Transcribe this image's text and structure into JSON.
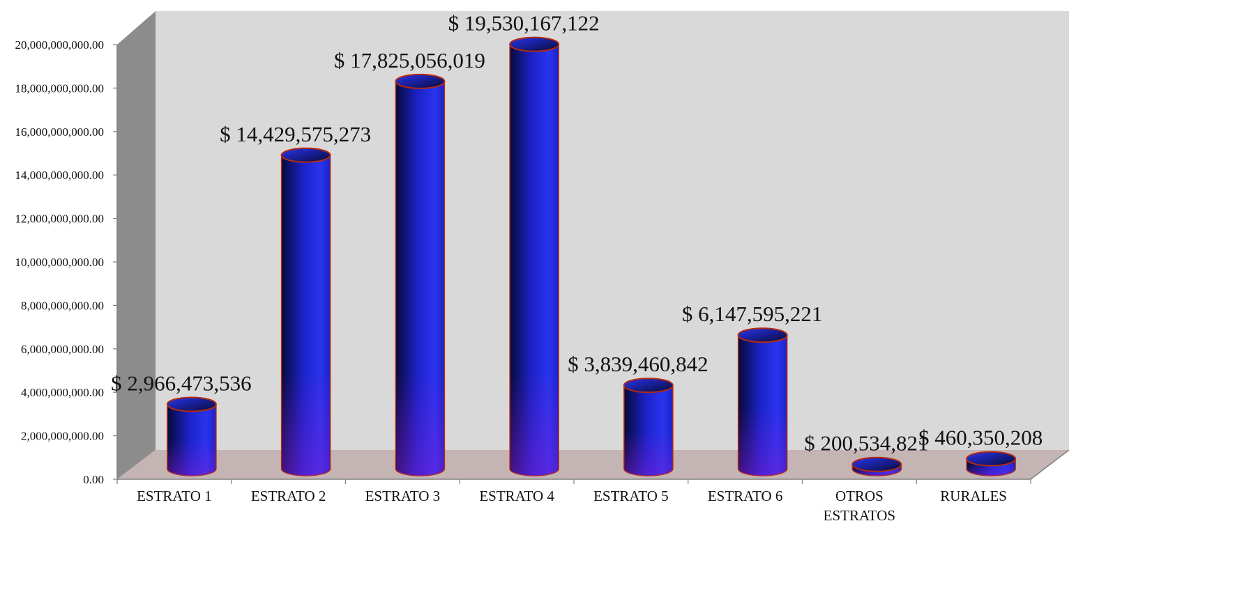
{
  "chart_data": {
    "type": "bar",
    "style": "3d-cylinder",
    "categories": [
      "ESTRATO 1",
      "ESTRATO 2",
      "ESTRATO 3",
      "ESTRATO 4",
      "ESTRATO 5",
      "ESTRATO 6",
      "OTROS ESTRATOS",
      "RURALES"
    ],
    "category_lines": [
      [
        "ESTRATO 1"
      ],
      [
        "ESTRATO 2"
      ],
      [
        "ESTRATO 3"
      ],
      [
        "ESTRATO 4"
      ],
      [
        "ESTRATO 5"
      ],
      [
        "ESTRATO 6"
      ],
      [
        "OTROS",
        "ESTRATOS"
      ],
      [
        "RURALES"
      ]
    ],
    "values": [
      2966473536,
      14429575273,
      17825056019,
      19530167122,
      3839460842,
      6147595221,
      200534821,
      460350208
    ],
    "data_labels": [
      "$ 2,966,473,536",
      "$ 14,429,575,273",
      "$ 17,825,056,019",
      "$ 19,530,167,122",
      "$ 3,839,460,842",
      "$ 6,147,595,221",
      "$ 200,534,821",
      "$ 460,350,208"
    ],
    "ylim": [
      0,
      20000000000
    ],
    "y_ticks": [
      "0.00",
      "2,000,000,000.00",
      "4,000,000,000.00",
      "6,000,000,000.00",
      "8,000,000,000.00",
      "10,000,000,000.00",
      "12,000,000,000.00",
      "14,000,000,000.00",
      "16,000,000,000.00",
      "18,000,000,000.00",
      "20,000,000,000.00"
    ],
    "title": "",
    "xlabel": "",
    "ylabel": "",
    "grid": false,
    "legend": "none",
    "colors": {
      "bar_dark": "#060a3a",
      "bar_mid": "#1c22c8",
      "bar_light": "#2a34ee",
      "bar_bottom": "#8a1ed8",
      "bar_outline": "#b42a10",
      "back_wall": "#d9d9d9",
      "side_wall": "#8c8c8c",
      "floor": "#c4b4b4",
      "axis_line": "#808080"
    }
  }
}
